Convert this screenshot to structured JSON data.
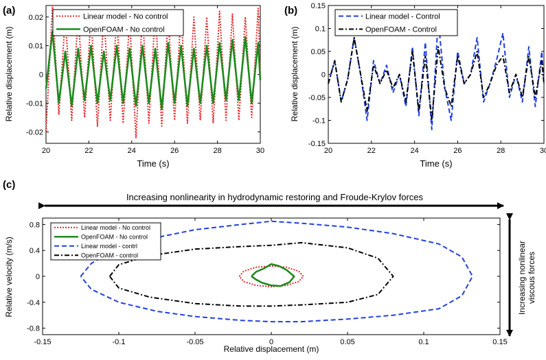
{
  "panel_labels": {
    "a": "(a)",
    "b": "(b)",
    "c": "(c)"
  },
  "arrow_labels": {
    "horizontal": "Increasing nonlinearity in  hydrodynamic restoring and Froude-Krylov forces",
    "vertical_line1": "Increasing nonlinear",
    "vertical_line2": "viscous forces"
  },
  "chart_data": [
    {
      "panel": "(a)",
      "type": "line",
      "xlabel": "Time (s)",
      "ylabel": "Relative displacement (m)",
      "xlim": [
        20,
        30
      ],
      "ylim": [
        -0.024,
        0.024
      ],
      "xticks": [
        20,
        22,
        24,
        26,
        28,
        30
      ],
      "yticks": [
        -0.02,
        -0.01,
        0,
        0.01,
        0.02
      ],
      "ytick_labels": [
        "-0.02",
        "-0.01",
        "0",
        "0.01",
        "0.02"
      ],
      "legend_position": "top-left",
      "series": [
        {
          "name": "Linear model - No control",
          "color": "#e8262a",
          "style": "dotted",
          "x": [
            20,
            20.3,
            20.6,
            20.9,
            21.2,
            21.5,
            21.8,
            22.1,
            22.4,
            22.7,
            23.0,
            23.3,
            23.6,
            23.9,
            24.2,
            24.5,
            24.8,
            25.1,
            25.4,
            25.7,
            26.0,
            26.3,
            26.6,
            26.9,
            27.2,
            27.5,
            27.8,
            28.1,
            28.4,
            28.7,
            29.0,
            29.3,
            29.6,
            29.9,
            30
          ],
          "values": [
            -0.02,
            0.024,
            -0.014,
            0.02,
            -0.016,
            0.021,
            -0.015,
            0.02,
            -0.018,
            0.021,
            -0.016,
            0.02,
            -0.017,
            0.019,
            -0.022,
            0.021,
            -0.017,
            0.022,
            -0.018,
            0.02,
            -0.016,
            0.021,
            -0.017,
            0.02,
            -0.016,
            0.02,
            -0.017,
            0.022,
            -0.016,
            0.021,
            -0.016,
            0.02,
            -0.015,
            0.023,
            0.0
          ]
        },
        {
          "name": "OpenFOAM - No control",
          "color": "#1e8a1e",
          "style": "solid",
          "x": [
            20,
            20.3,
            20.6,
            20.9,
            21.2,
            21.5,
            21.8,
            22.1,
            22.4,
            22.7,
            23.0,
            23.3,
            23.6,
            23.9,
            24.2,
            24.5,
            24.8,
            25.1,
            25.4,
            25.7,
            26.0,
            26.3,
            26.6,
            26.9,
            27.2,
            27.5,
            27.8,
            28.1,
            28.4,
            28.7,
            29.0,
            29.3,
            29.6,
            29.9,
            30
          ],
          "values": [
            -0.005,
            0.015,
            -0.01,
            0.008,
            -0.011,
            0.009,
            -0.009,
            0.01,
            -0.01,
            0.008,
            -0.009,
            0.01,
            -0.01,
            0.009,
            -0.011,
            0.01,
            -0.01,
            0.009,
            -0.012,
            0.011,
            -0.01,
            0.01,
            -0.011,
            0.009,
            -0.01,
            0.01,
            -0.01,
            0.011,
            -0.009,
            0.012,
            -0.009,
            0.013,
            -0.01,
            0.011,
            -0.002
          ]
        }
      ]
    },
    {
      "panel": "(b)",
      "type": "line",
      "xlabel": "Time (s)",
      "ylabel": "Relative displacement (m)",
      "xlim": [
        20,
        30
      ],
      "ylim": [
        -0.15,
        0.15
      ],
      "xticks": [
        20,
        22,
        24,
        26,
        28,
        30
      ],
      "xtick_labels": [
        "20",
        "22",
        "24",
        "26",
        "28",
        "30"
      ],
      "yticks": [
        -0.15,
        -0.1,
        -0.05,
        0,
        0.05,
        0.1,
        0.15
      ],
      "ytick_labels": [
        "-0.15",
        "-0.1",
        "-0.05",
        "0",
        "0.05",
        "0.1",
        "0.15"
      ],
      "legend_position": "top-left",
      "series": [
        {
          "name": "Linear model - Control",
          "color": "#1f3fe0",
          "style": "dashed",
          "x": [
            20,
            20.3,
            20.6,
            20.9,
            21.2,
            21.5,
            21.8,
            22.1,
            22.4,
            22.7,
            23.0,
            23.3,
            23.6,
            23.9,
            24.2,
            24.5,
            24.8,
            25.1,
            25.4,
            25.7,
            26.0,
            26.3,
            26.6,
            26.9,
            27.2,
            27.5,
            27.8,
            28.1,
            28.4,
            28.7,
            29.0,
            29.3,
            29.6,
            29.9,
            30
          ],
          "values": [
            -0.02,
            0.03,
            -0.06,
            -0.01,
            0.08,
            0.0,
            -0.1,
            0.03,
            -0.02,
            0.02,
            -0.04,
            0.0,
            -0.07,
            0.06,
            -0.09,
            0.07,
            -0.12,
            0.12,
            -0.03,
            -0.1,
            0.05,
            -0.02,
            0.0,
            0.08,
            -0.06,
            -0.02,
            0.03,
            0.09,
            -0.05,
            0.0,
            -0.06,
            0.06,
            -0.07,
            0.05,
            -0.02
          ]
        },
        {
          "name": "OpenFOAM - Control",
          "color": "#000000",
          "style": "dashdot",
          "x": [
            20,
            20.3,
            20.6,
            20.9,
            21.2,
            21.5,
            21.8,
            22.1,
            22.4,
            22.7,
            23.0,
            23.3,
            23.6,
            23.9,
            24.2,
            24.5,
            24.8,
            25.1,
            25.4,
            25.7,
            26.0,
            26.3,
            26.6,
            26.9,
            27.2,
            27.5,
            27.8,
            28.1,
            28.4,
            28.7,
            29.0,
            29.3,
            29.6,
            29.9,
            30
          ],
          "values": [
            -0.02,
            0.03,
            -0.06,
            -0.01,
            0.08,
            0.0,
            -0.08,
            0.02,
            -0.02,
            0.01,
            -0.03,
            0.0,
            -0.06,
            0.05,
            -0.08,
            0.04,
            -0.1,
            0.06,
            -0.03,
            -0.07,
            0.04,
            -0.02,
            0.0,
            0.05,
            -0.05,
            -0.02,
            0.02,
            0.04,
            -0.04,
            0.0,
            -0.05,
            0.04,
            -0.05,
            0.03,
            -0.02
          ]
        }
      ]
    },
    {
      "panel": "(c)",
      "type": "line",
      "xlabel": "Relative displacement (m)",
      "ylabel": "Relative velocity (m/s)",
      "xlim": [
        -0.15,
        0.15
      ],
      "ylim": [
        -0.9,
        0.9
      ],
      "xticks": [
        -0.15,
        -0.1,
        -0.05,
        0,
        0.05,
        0.1,
        0.15
      ],
      "xtick_labels": [
        "-0.15",
        "-0.1",
        "-0.05",
        "0",
        "0.05",
        "0.1",
        "0.15"
      ],
      "yticks": [
        -0.8,
        -0.4,
        0,
        0.4,
        0.8
      ],
      "ytick_labels": [
        "-0.8",
        "-0.4",
        "0",
        "0.4",
        "0.8"
      ],
      "legend_position": "top-left",
      "series": [
        {
          "name": "Linear model - No control",
          "color": "#e8262a",
          "style": "dotted",
          "x": [
            -0.021,
            -0.018,
            -0.01,
            0,
            0.01,
            0.018,
            0.021,
            0.018,
            0.01,
            0,
            -0.01,
            -0.018,
            -0.021
          ],
          "y": [
            0,
            0.08,
            0.14,
            0.16,
            0.14,
            0.08,
            0,
            -0.08,
            -0.14,
            -0.16,
            -0.14,
            -0.08,
            0
          ]
        },
        {
          "name": "OpenFOAM - No control",
          "color": "#1e8a1e",
          "style": "solid",
          "x": [
            -0.013,
            -0.01,
            -0.005,
            0,
            0.005,
            0.01,
            0.015,
            0.012,
            0.006,
            0,
            -0.006,
            -0.01,
            -0.013
          ],
          "y": [
            0,
            0.07,
            0.12,
            0.19,
            0.16,
            0.1,
            0,
            -0.09,
            -0.15,
            -0.14,
            -0.1,
            -0.05,
            0
          ]
        },
        {
          "name": "Linear model - contrl",
          "color": "#1f3fe0",
          "style": "dashed",
          "x": [
            -0.125,
            -0.118,
            -0.1,
            -0.075,
            -0.05,
            -0.02,
            0,
            0.02,
            0.05,
            0.08,
            0.11,
            0.125,
            0.132,
            0.125,
            0.11,
            0.08,
            0.05,
            0.02,
            0,
            -0.02,
            -0.05,
            -0.075,
            -0.1,
            -0.118,
            -0.125
          ],
          "y": [
            0,
            0.2,
            0.45,
            0.6,
            0.72,
            0.8,
            0.85,
            0.82,
            0.76,
            0.66,
            0.5,
            0.3,
            0,
            -0.3,
            -0.5,
            -0.6,
            -0.66,
            -0.7,
            -0.7,
            -0.68,
            -0.62,
            -0.54,
            -0.4,
            -0.2,
            0
          ]
        },
        {
          "name": "OpenFOAM - control",
          "color": "#000000",
          "style": "dashdot",
          "x": [
            -0.106,
            -0.1,
            -0.08,
            -0.05,
            -0.02,
            0,
            0.02,
            0.05,
            0.07,
            0.08,
            0.07,
            0.05,
            0.02,
            0,
            -0.02,
            -0.05,
            -0.08,
            -0.1,
            -0.106
          ],
          "y": [
            0,
            0.18,
            0.32,
            0.42,
            0.46,
            0.48,
            0.52,
            0.44,
            0.28,
            0,
            -0.28,
            -0.4,
            -0.44,
            -0.46,
            -0.46,
            -0.42,
            -0.32,
            -0.18,
            0
          ]
        }
      ]
    }
  ]
}
